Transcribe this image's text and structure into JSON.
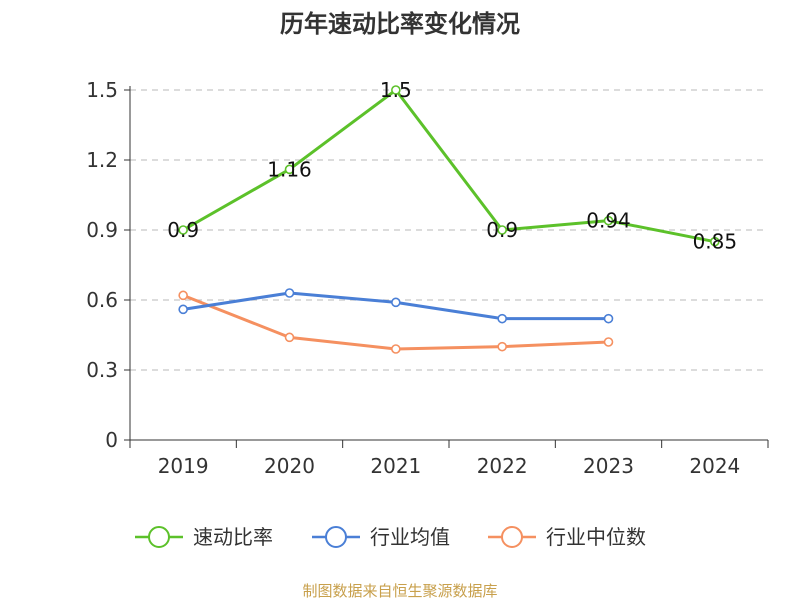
{
  "chart_data": {
    "type": "line",
    "title": "历年速动比率变化情况",
    "categories": [
      "2019",
      "2020",
      "2021",
      "2022",
      "2023",
      "2024"
    ],
    "y_ticks": [
      "0",
      "0.3",
      "0.6",
      "0.9",
      "1.2",
      "1.5"
    ],
    "ylim": [
      0,
      1.5
    ],
    "grid": true,
    "legend_position": "bottom",
    "series": [
      {
        "name": "速动比率",
        "color": "#5cc12a",
        "values": [
          0.9,
          1.16,
          1.5,
          0.9,
          0.94,
          0.85
        ],
        "labels": [
          "0.9",
          "1.16",
          "1.5",
          "0.9",
          "0.94",
          "0.85"
        ]
      },
      {
        "name": "行业均值",
        "color": "#4a7fd6",
        "values": [
          0.56,
          0.63,
          0.59,
          0.52,
          0.52,
          null
        ]
      },
      {
        "name": "行业中位数",
        "color": "#f59060",
        "values": [
          0.62,
          0.44,
          0.39,
          0.4,
          0.42,
          null
        ]
      }
    ]
  },
  "footer": {
    "source": "制图数据来自恒生聚源数据库",
    "color": "#c8a04c"
  }
}
